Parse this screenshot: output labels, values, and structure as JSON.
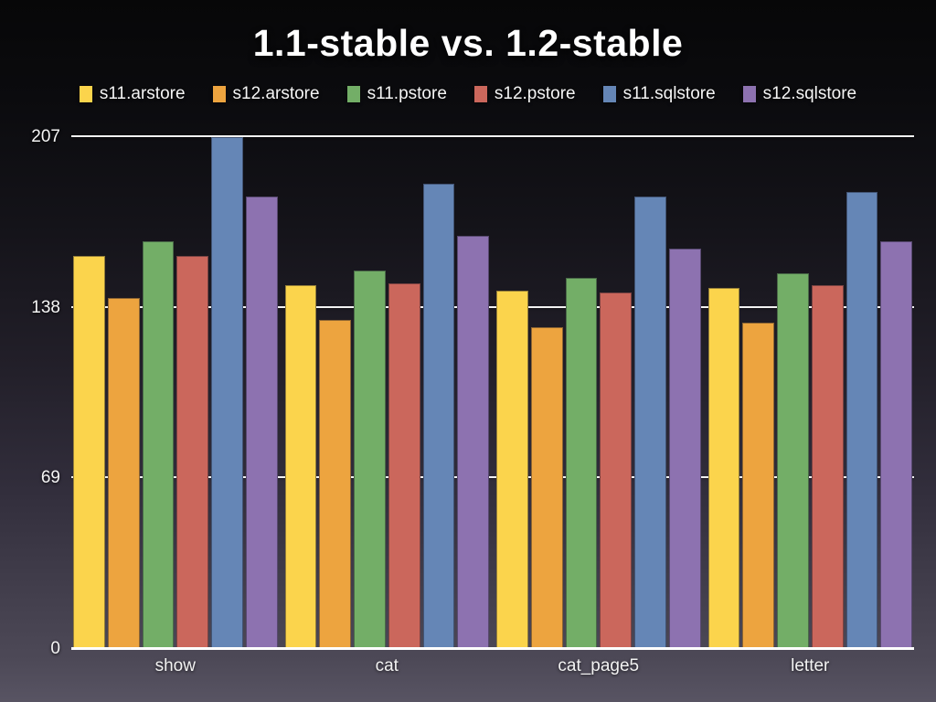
{
  "page": {
    "background_top": "#070708",
    "background_bottom": "#585463",
    "grid_color": "#f2f2f2",
    "axis_color": "#ffffff",
    "text_color": "#f5f5f5"
  },
  "chart_data": {
    "type": "bar",
    "title": "1.1-stable vs. 1.2-stable",
    "categories": [
      "show",
      "cat",
      "cat_page5",
      "letter"
    ],
    "series": [
      {
        "name": "s11.arstore",
        "color": "#fbd44c",
        "values": [
          159,
          147,
          145,
          146
        ]
      },
      {
        "name": "s12.arstore",
        "color": "#eda43f",
        "values": [
          142,
          133,
          130,
          132
        ]
      },
      {
        "name": "s11.pstore",
        "color": "#73ae67",
        "values": [
          165,
          153,
          150,
          152
        ]
      },
      {
        "name": "s12.pstore",
        "color": "#cb675c",
        "values": [
          159,
          148,
          144,
          147
        ]
      },
      {
        "name": "s11.sqlstore",
        "color": "#6586b6",
        "values": [
          207,
          188,
          183,
          185
        ]
      },
      {
        "name": "s12.sqlstore",
        "color": "#8d72b0",
        "values": [
          183,
          167,
          162,
          165
        ]
      }
    ],
    "ylim": [
      0,
      207
    ],
    "yticks": [
      0,
      69,
      138,
      207
    ],
    "xlabel": "",
    "ylabel": "",
    "grid": true,
    "legend_position": "top"
  }
}
